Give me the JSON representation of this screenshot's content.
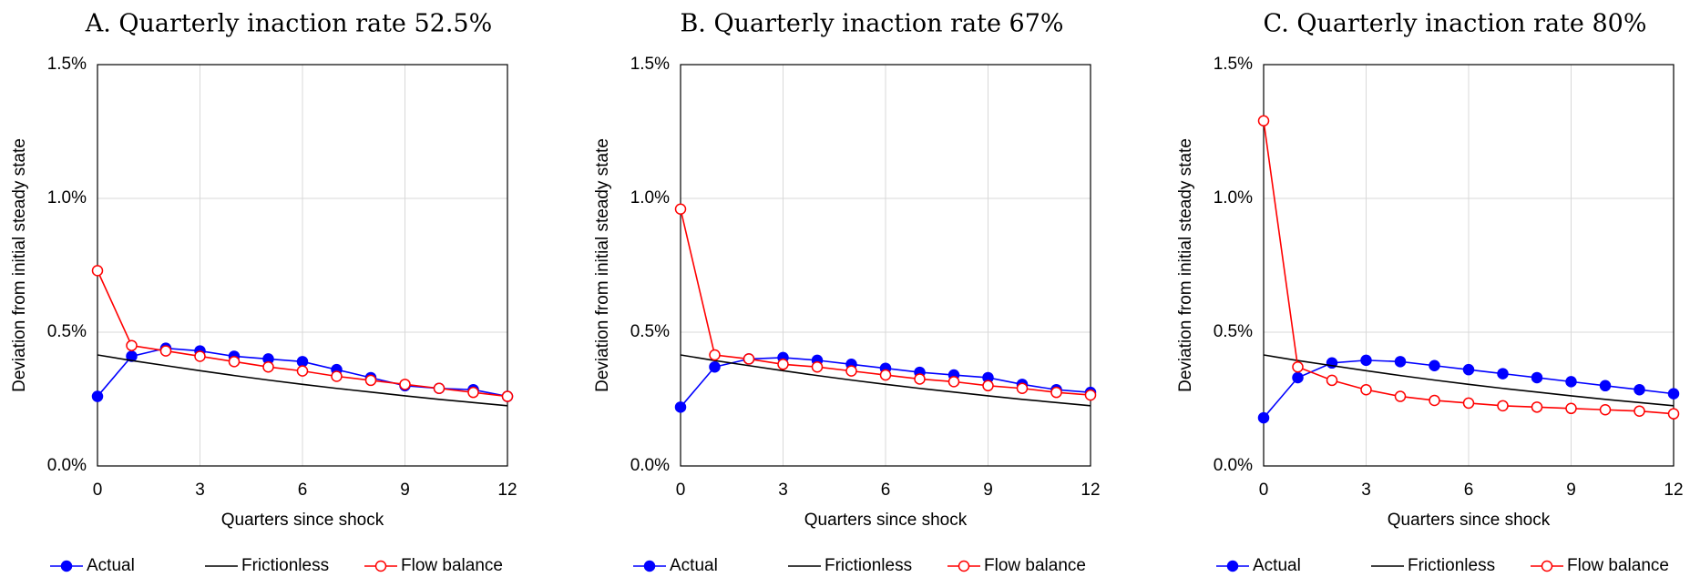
{
  "chart_data": [
    {
      "type": "line",
      "title": "A. Quarterly inaction rate 52.5%",
      "x_label": "Quarters since shock",
      "y_label": "Deviation from initial steady state",
      "x": [
        0,
        1,
        2,
        3,
        4,
        5,
        6,
        7,
        8,
        9,
        10,
        11,
        12
      ],
      "xlim": [
        0,
        12
      ],
      "xticks": [
        0,
        3,
        6,
        9,
        12
      ],
      "ylim": [
        0,
        1.5
      ],
      "yticks": [
        {
          "value": 0,
          "label": "0.0%"
        },
        {
          "value": 0.5,
          "label": "0.5%"
        },
        {
          "value": 1,
          "label": "1.0%"
        },
        {
          "value": 1.5,
          "label": "1.5%"
        }
      ],
      "grid": true,
      "legend": "bottom",
      "series": [
        {
          "name": "Actual",
          "color": "#0000ff",
          "marker": "filled",
          "values": [
            0.26,
            0.41,
            0.44,
            0.43,
            0.41,
            0.4,
            0.39,
            0.36,
            0.33,
            0.3,
            0.29,
            0.285,
            0.26
          ]
        },
        {
          "name": "Frictionless",
          "color": "#000000",
          "marker": "none",
          "values": [
            0.415,
            0.394,
            0.375,
            0.356,
            0.338,
            0.321,
            0.305,
            0.29,
            0.276,
            0.262,
            0.249,
            0.237,
            0.225
          ]
        },
        {
          "name": "Flow balance",
          "color": "#ff0000",
          "marker": "open",
          "values": [
            0.73,
            0.45,
            0.43,
            0.41,
            0.39,
            0.37,
            0.355,
            0.335,
            0.32,
            0.305,
            0.29,
            0.275,
            0.26
          ]
        }
      ]
    },
    {
      "type": "line",
      "title": "B. Quarterly inaction rate 67%",
      "x_label": "Quarters since shock",
      "y_label": "Deviation from initial steady state",
      "x": [
        0,
        1,
        2,
        3,
        4,
        5,
        6,
        7,
        8,
        9,
        10,
        11,
        12
      ],
      "xlim": [
        0,
        12
      ],
      "xticks": [
        0,
        3,
        6,
        9,
        12
      ],
      "ylim": [
        0,
        1.5
      ],
      "yticks": [
        {
          "value": 0,
          "label": "0.0%"
        },
        {
          "value": 0.5,
          "label": "0.5%"
        },
        {
          "value": 1,
          "label": "1.0%"
        },
        {
          "value": 1.5,
          "label": "1.5%"
        }
      ],
      "grid": true,
      "legend": "bottom",
      "series": [
        {
          "name": "Actual",
          "color": "#0000ff",
          "marker": "filled",
          "values": [
            0.22,
            0.37,
            0.4,
            0.405,
            0.395,
            0.38,
            0.365,
            0.35,
            0.34,
            0.33,
            0.305,
            0.285,
            0.275
          ]
        },
        {
          "name": "Frictionless",
          "color": "#000000",
          "marker": "none",
          "values": [
            0.415,
            0.394,
            0.375,
            0.356,
            0.338,
            0.321,
            0.305,
            0.29,
            0.276,
            0.262,
            0.249,
            0.237,
            0.225
          ]
        },
        {
          "name": "Flow balance",
          "color": "#ff0000",
          "marker": "open",
          "values": [
            0.96,
            0.415,
            0.4,
            0.38,
            0.37,
            0.355,
            0.34,
            0.325,
            0.315,
            0.3,
            0.29,
            0.275,
            0.265
          ]
        }
      ]
    },
    {
      "type": "line",
      "title": "C. Quarterly inaction rate 80%",
      "x_label": "Quarters since shock",
      "y_label": "Deviation from initial steady state",
      "x": [
        0,
        1,
        2,
        3,
        4,
        5,
        6,
        7,
        8,
        9,
        10,
        11,
        12
      ],
      "xlim": [
        0,
        12
      ],
      "xticks": [
        0,
        3,
        6,
        9,
        12
      ],
      "ylim": [
        0,
        1.5
      ],
      "yticks": [
        {
          "value": 0,
          "label": "0.0%"
        },
        {
          "value": 0.5,
          "label": "0.5%"
        },
        {
          "value": 1,
          "label": "1.0%"
        },
        {
          "value": 1.5,
          "label": "1.5%"
        }
      ],
      "grid": true,
      "legend": "bottom",
      "series": [
        {
          "name": "Actual",
          "color": "#0000ff",
          "marker": "filled",
          "values": [
            0.18,
            0.33,
            0.385,
            0.395,
            0.39,
            0.375,
            0.36,
            0.345,
            0.33,
            0.315,
            0.3,
            0.285,
            0.27
          ]
        },
        {
          "name": "Frictionless",
          "color": "#000000",
          "marker": "none",
          "values": [
            0.415,
            0.394,
            0.375,
            0.356,
            0.338,
            0.321,
            0.305,
            0.29,
            0.276,
            0.262,
            0.249,
            0.237,
            0.225
          ]
        },
        {
          "name": "Flow balance",
          "color": "#ff0000",
          "marker": "open",
          "values": [
            1.29,
            0.37,
            0.32,
            0.285,
            0.26,
            0.245,
            0.235,
            0.225,
            0.22,
            0.215,
            0.21,
            0.205,
            0.195
          ]
        }
      ]
    }
  ]
}
